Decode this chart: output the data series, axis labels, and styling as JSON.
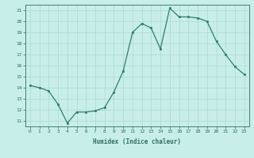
{
  "x": [
    0,
    1,
    2,
    3,
    4,
    5,
    6,
    7,
    8,
    9,
    10,
    11,
    12,
    13,
    14,
    15,
    16,
    17,
    18,
    19,
    20,
    21,
    22,
    23
  ],
  "y": [
    14.2,
    14.0,
    13.7,
    12.5,
    10.8,
    11.8,
    11.8,
    11.9,
    12.2,
    13.6,
    15.5,
    19.0,
    19.8,
    19.4,
    17.5,
    21.2,
    20.4,
    20.4,
    20.3,
    20.0,
    18.2,
    17.0,
    15.9,
    15.2
  ],
  "line_color": "#2e7d6e",
  "bg_color": "#c8eeea",
  "grid_color": "#aed8d0",
  "text_color": "#2e6e63",
  "xlabel": "Humidex (Indice chaleur)",
  "xlim": [
    -0.5,
    23.5
  ],
  "ylim": [
    10.5,
    21.5
  ],
  "yticks": [
    11,
    12,
    13,
    14,
    15,
    16,
    17,
    18,
    19,
    20,
    21
  ],
  "xticks": [
    0,
    1,
    2,
    3,
    4,
    5,
    6,
    7,
    8,
    9,
    10,
    11,
    12,
    13,
    14,
    15,
    16,
    17,
    18,
    19,
    20,
    21,
    22,
    23
  ]
}
